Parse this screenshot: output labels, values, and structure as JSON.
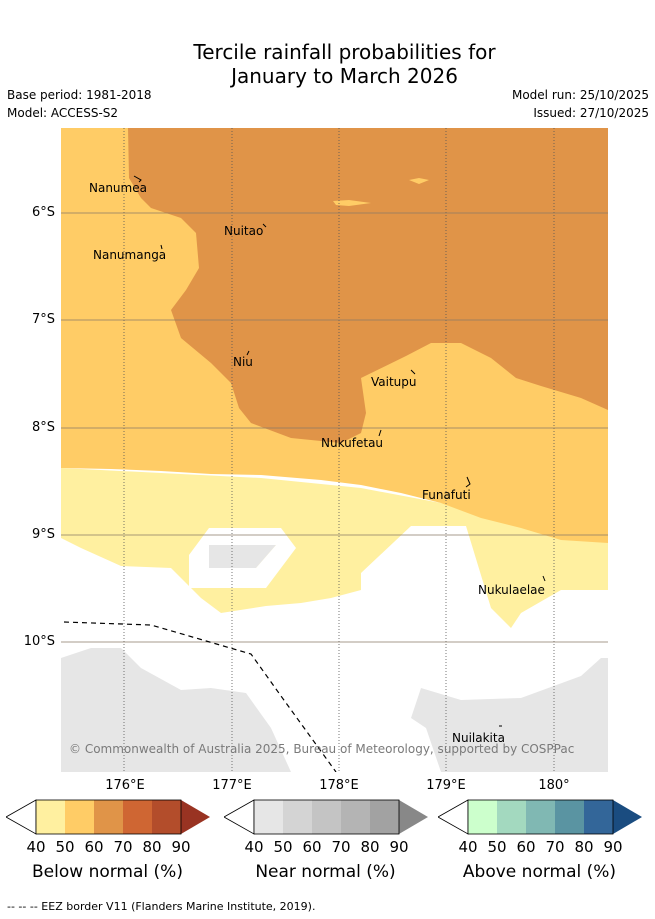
{
  "title_line1": "Tercile rainfall probabilities for",
  "title_line2": "January to March 2026",
  "base_period": "Base period: 1981-2018",
  "model": "Model: ACCESS-S2",
  "model_run": "Model run: 25/10/2025",
  "issued": "Issued: 27/10/2025",
  "lat_ticks": [
    "6°S",
    "7°S",
    "8°S",
    "9°S",
    "10°S"
  ],
  "lon_ticks": [
    "176°E",
    "177°E",
    "178°E",
    "179°E",
    "180°"
  ],
  "places": [
    "Nanumea",
    "Nuitao",
    "Nanumanga",
    "Niu",
    "Vaitupu",
    "Nukufetau",
    "Funafuti",
    "Nukulaelae",
    "Nuilakita"
  ],
  "copyright": "© Commonwealth of Australia 2025, Bureau of Meteorology, supported by COSPPac",
  "legend_ticks": [
    "40",
    "50",
    "60",
    "70",
    "80",
    "90"
  ],
  "legend_below": {
    "title": "Below normal (%)",
    "colors": [
      "#fff0a0",
      "#ffcc66",
      "#e09448",
      "#cf6633",
      "#b34d2b",
      "#993322"
    ]
  },
  "legend_near": {
    "title": "Near normal (%)",
    "colors": [
      "#e6e6e6",
      "#d4d4d4",
      "#c4c4c4",
      "#b4b4b4",
      "#a2a2a2",
      "#888888"
    ]
  },
  "legend_above": {
    "title": "Above normal (%)",
    "colors": [
      "#ccffcc",
      "#a3d9bf",
      "#80b8b3",
      "#5a94a2",
      "#336699",
      "#1a4c80"
    ]
  },
  "footer": "-- -- -- EEZ border V11 (Flanders Marine Institute, 2019)."
}
